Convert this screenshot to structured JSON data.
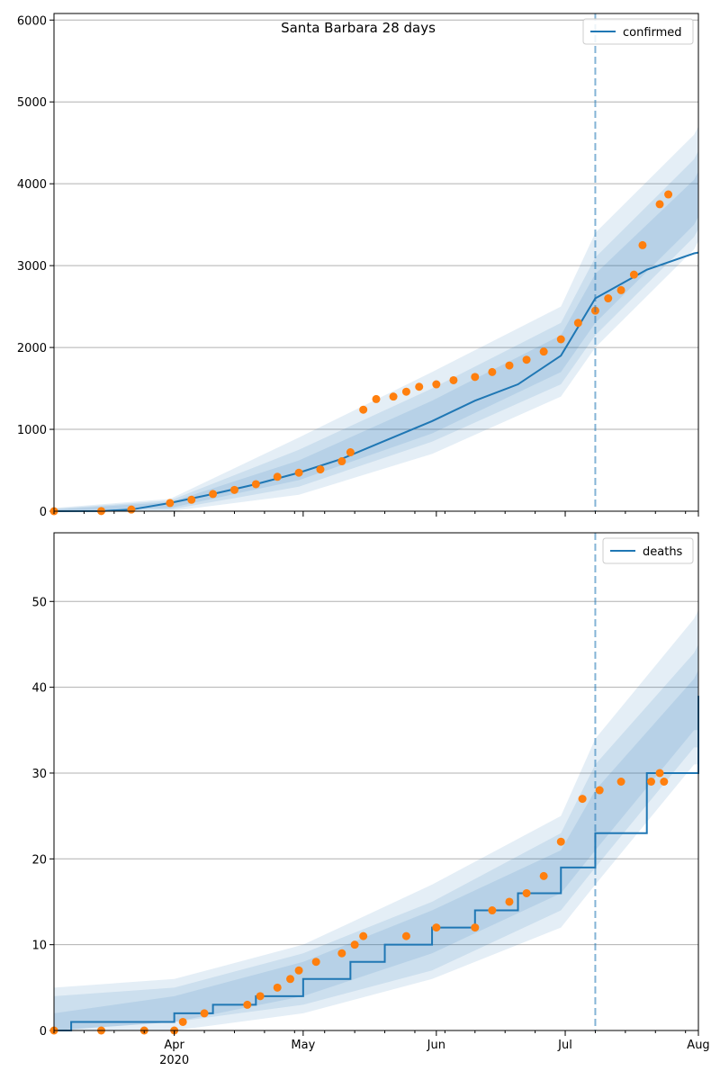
{
  "chart_data": [
    {
      "type": "line",
      "title": "Santa Barbara 28 days",
      "xlabel": "",
      "ylabel": "",
      "x_range": [
        "2020-03-04",
        "2020-08-01"
      ],
      "ylim": [
        0,
        6080
      ],
      "yticks": [
        0,
        1000,
        2000,
        3000,
        4000,
        5000,
        6000
      ],
      "grid": "horizontal",
      "legend_position": "top-right",
      "forecast_start": "2020-07-08",
      "series": [
        {
          "name": "confirmed",
          "kind": "line",
          "color": "#1f77b4",
          "points": [
            [
              "2020-03-04",
              0
            ],
            [
              "2020-03-15",
              2
            ],
            [
              "2020-03-22",
              20
            ],
            [
              "2020-03-31",
              100
            ],
            [
              "2020-04-10",
              210
            ],
            [
              "2020-04-20",
              330
            ],
            [
              "2020-04-30",
              470
            ],
            [
              "2020-05-10",
              640
            ],
            [
              "2020-05-20",
              860
            ],
            [
              "2020-05-31",
              1100
            ],
            [
              "2020-06-10",
              1350
            ],
            [
              "2020-06-20",
              1550
            ],
            [
              "2020-06-30",
              1900
            ],
            [
              "2020-07-08",
              2600
            ],
            [
              "2020-07-20",
              2950
            ],
            [
              "2020-07-31",
              3150
            ],
            [
              "2020-08-01",
              3160
            ]
          ]
        },
        {
          "name": "",
          "kind": "scatter",
          "color": "#ff7f0e",
          "points": [
            [
              "2020-03-04",
              0
            ],
            [
              "2020-03-15",
              2
            ],
            [
              "2020-03-22",
              20
            ],
            [
              "2020-03-31",
              100
            ],
            [
              "2020-04-05",
              140
            ],
            [
              "2020-04-10",
              210
            ],
            [
              "2020-04-15",
              260
            ],
            [
              "2020-04-20",
              330
            ],
            [
              "2020-04-25",
              420
            ],
            [
              "2020-04-30",
              470
            ],
            [
              "2020-05-05",
              510
            ],
            [
              "2020-05-10",
              610
            ],
            [
              "2020-05-12",
              720
            ],
            [
              "2020-05-15",
              1240
            ],
            [
              "2020-05-18",
              1370
            ],
            [
              "2020-05-22",
              1400
            ],
            [
              "2020-05-25",
              1460
            ],
            [
              "2020-05-28",
              1520
            ],
            [
              "2020-06-01",
              1550
            ],
            [
              "2020-06-05",
              1600
            ],
            [
              "2020-06-10",
              1640
            ],
            [
              "2020-06-14",
              1700
            ],
            [
              "2020-06-18",
              1780
            ],
            [
              "2020-06-22",
              1850
            ],
            [
              "2020-06-26",
              1950
            ],
            [
              "2020-06-30",
              2100
            ],
            [
              "2020-07-04",
              2300
            ],
            [
              "2020-07-08",
              2450
            ],
            [
              "2020-07-11",
              2600
            ],
            [
              "2020-07-14",
              2700
            ],
            [
              "2020-07-17",
              2890
            ],
            [
              "2020-07-19",
              3250
            ],
            [
              "2020-07-23",
              3750
            ],
            [
              "2020-07-25",
              3870
            ]
          ]
        }
      ],
      "bands": [
        {
          "opacity": 0.12,
          "points": [
            [
              "2020-03-04",
              0,
              40
            ],
            [
              "2020-03-31",
              0,
              150
            ],
            [
              "2020-04-30",
              200,
              900
            ],
            [
              "2020-05-31",
              700,
              1700
            ],
            [
              "2020-06-30",
              1400,
              2500
            ],
            [
              "2020-07-08",
              2000,
              3400
            ],
            [
              "2020-07-31",
              3200,
              4600
            ],
            [
              "2020-08-01",
              3300,
              4700
            ]
          ]
        },
        {
          "opacity": 0.12,
          "points": [
            [
              "2020-03-04",
              0,
              30
            ],
            [
              "2020-03-31",
              20,
              130
            ],
            [
              "2020-04-30",
              300,
              750
            ],
            [
              "2020-05-31",
              850,
              1500
            ],
            [
              "2020-06-30",
              1550,
              2300
            ],
            [
              "2020-07-08",
              2150,
              3100
            ],
            [
              "2020-07-31",
              3350,
              4300
            ],
            [
              "2020-08-01",
              3450,
              4400
            ]
          ]
        },
        {
          "opacity": 0.12,
          "points": [
            [
              "2020-03-04",
              0,
              20
            ],
            [
              "2020-03-31",
              40,
              110
            ],
            [
              "2020-04-30",
              380,
              620
            ],
            [
              "2020-05-31",
              950,
              1350
            ],
            [
              "2020-06-30",
              1700,
              2150
            ],
            [
              "2020-07-08",
              2300,
              2900
            ],
            [
              "2020-07-31",
              3500,
              4050
            ],
            [
              "2020-08-01",
              3600,
              4150
            ]
          ]
        }
      ]
    },
    {
      "type": "line",
      "title": "",
      "xlabel": "",
      "ylabel": "",
      "x_range": [
        "2020-03-04",
        "2020-08-01"
      ],
      "ylim": [
        0,
        58
      ],
      "yticks": [
        0,
        10,
        20,
        30,
        40,
        50
      ],
      "xticks": [
        {
          "date": "2020-04-01",
          "label": "Apr"
        },
        {
          "date": "2020-05-01",
          "label": "May"
        },
        {
          "date": "2020-06-01",
          "label": "Jun"
        },
        {
          "date": "2020-07-01",
          "label": "Jul"
        },
        {
          "date": "2020-08-01",
          "label": "Aug"
        }
      ],
      "year_label": "2020",
      "grid": "horizontal",
      "legend_position": "top-right",
      "forecast_start": "2020-07-08",
      "series": [
        {
          "name": "deaths",
          "kind": "step",
          "color": "#1f77b4",
          "points": [
            [
              "2020-03-04",
              0
            ],
            [
              "2020-03-08",
              1
            ],
            [
              "2020-04-01",
              2
            ],
            [
              "2020-04-10",
              3
            ],
            [
              "2020-04-20",
              4
            ],
            [
              "2020-05-01",
              6
            ],
            [
              "2020-05-12",
              8
            ],
            [
              "2020-05-20",
              10
            ],
            [
              "2020-05-31",
              12
            ],
            [
              "2020-06-10",
              14
            ],
            [
              "2020-06-20",
              16
            ],
            [
              "2020-06-30",
              19
            ],
            [
              "2020-07-08",
              23
            ],
            [
              "2020-07-20",
              30
            ],
            [
              "2020-08-01",
              39
            ]
          ]
        },
        {
          "name": "",
          "kind": "scatter",
          "color": "#ff7f0e",
          "points": [
            [
              "2020-03-04",
              0
            ],
            [
              "2020-03-15",
              0
            ],
            [
              "2020-03-25",
              0
            ],
            [
              "2020-04-01",
              0
            ],
            [
              "2020-04-03",
              1
            ],
            [
              "2020-04-08",
              2
            ],
            [
              "2020-04-18",
              3
            ],
            [
              "2020-04-21",
              4
            ],
            [
              "2020-04-25",
              5
            ],
            [
              "2020-04-28",
              6
            ],
            [
              "2020-04-30",
              7
            ],
            [
              "2020-05-04",
              8
            ],
            [
              "2020-05-10",
              9
            ],
            [
              "2020-05-13",
              10
            ],
            [
              "2020-05-15",
              11
            ],
            [
              "2020-05-25",
              11
            ],
            [
              "2020-06-01",
              12
            ],
            [
              "2020-06-10",
              12
            ],
            [
              "2020-06-14",
              14
            ],
            [
              "2020-06-18",
              15
            ],
            [
              "2020-06-22",
              16
            ],
            [
              "2020-06-26",
              18
            ],
            [
              "2020-06-30",
              22
            ],
            [
              "2020-07-05",
              27
            ],
            [
              "2020-07-09",
              28
            ],
            [
              "2020-07-14",
              29
            ],
            [
              "2020-07-21",
              29
            ],
            [
              "2020-07-23",
              30
            ],
            [
              "2020-07-24",
              29
            ]
          ]
        }
      ],
      "bands": [
        {
          "opacity": 0.12,
          "points": [
            [
              "2020-03-04",
              0,
              5
            ],
            [
              "2020-04-01",
              0,
              6
            ],
            [
              "2020-05-01",
              2,
              10
            ],
            [
              "2020-05-31",
              6,
              17
            ],
            [
              "2020-06-30",
              12,
              25
            ],
            [
              "2020-07-08",
              17,
              34
            ],
            [
              "2020-07-31",
              31,
              48
            ],
            [
              "2020-08-01",
              31,
              49
            ]
          ]
        },
        {
          "opacity": 0.12,
          "points": [
            [
              "2020-03-04",
              0,
              4
            ],
            [
              "2020-04-01",
              1,
              5
            ],
            [
              "2020-05-01",
              3,
              9
            ],
            [
              "2020-05-31",
              7,
              15
            ],
            [
              "2020-06-30",
              14,
              23
            ],
            [
              "2020-07-08",
              19,
              31
            ],
            [
              "2020-07-31",
              33,
              44
            ],
            [
              "2020-08-01",
              33,
              45
            ]
          ]
        },
        {
          "opacity": 0.12,
          "points": [
            [
              "2020-03-04",
              0,
              2
            ],
            [
              "2020-04-01",
              1,
              4
            ],
            [
              "2020-05-01",
              4,
              8
            ],
            [
              "2020-05-31",
              9,
              14
            ],
            [
              "2020-06-30",
              16,
              21
            ],
            [
              "2020-07-08",
              21,
              28
            ],
            [
              "2020-07-31",
              35,
              41
            ],
            [
              "2020-08-01",
              35,
              42
            ]
          ]
        }
      ]
    }
  ]
}
